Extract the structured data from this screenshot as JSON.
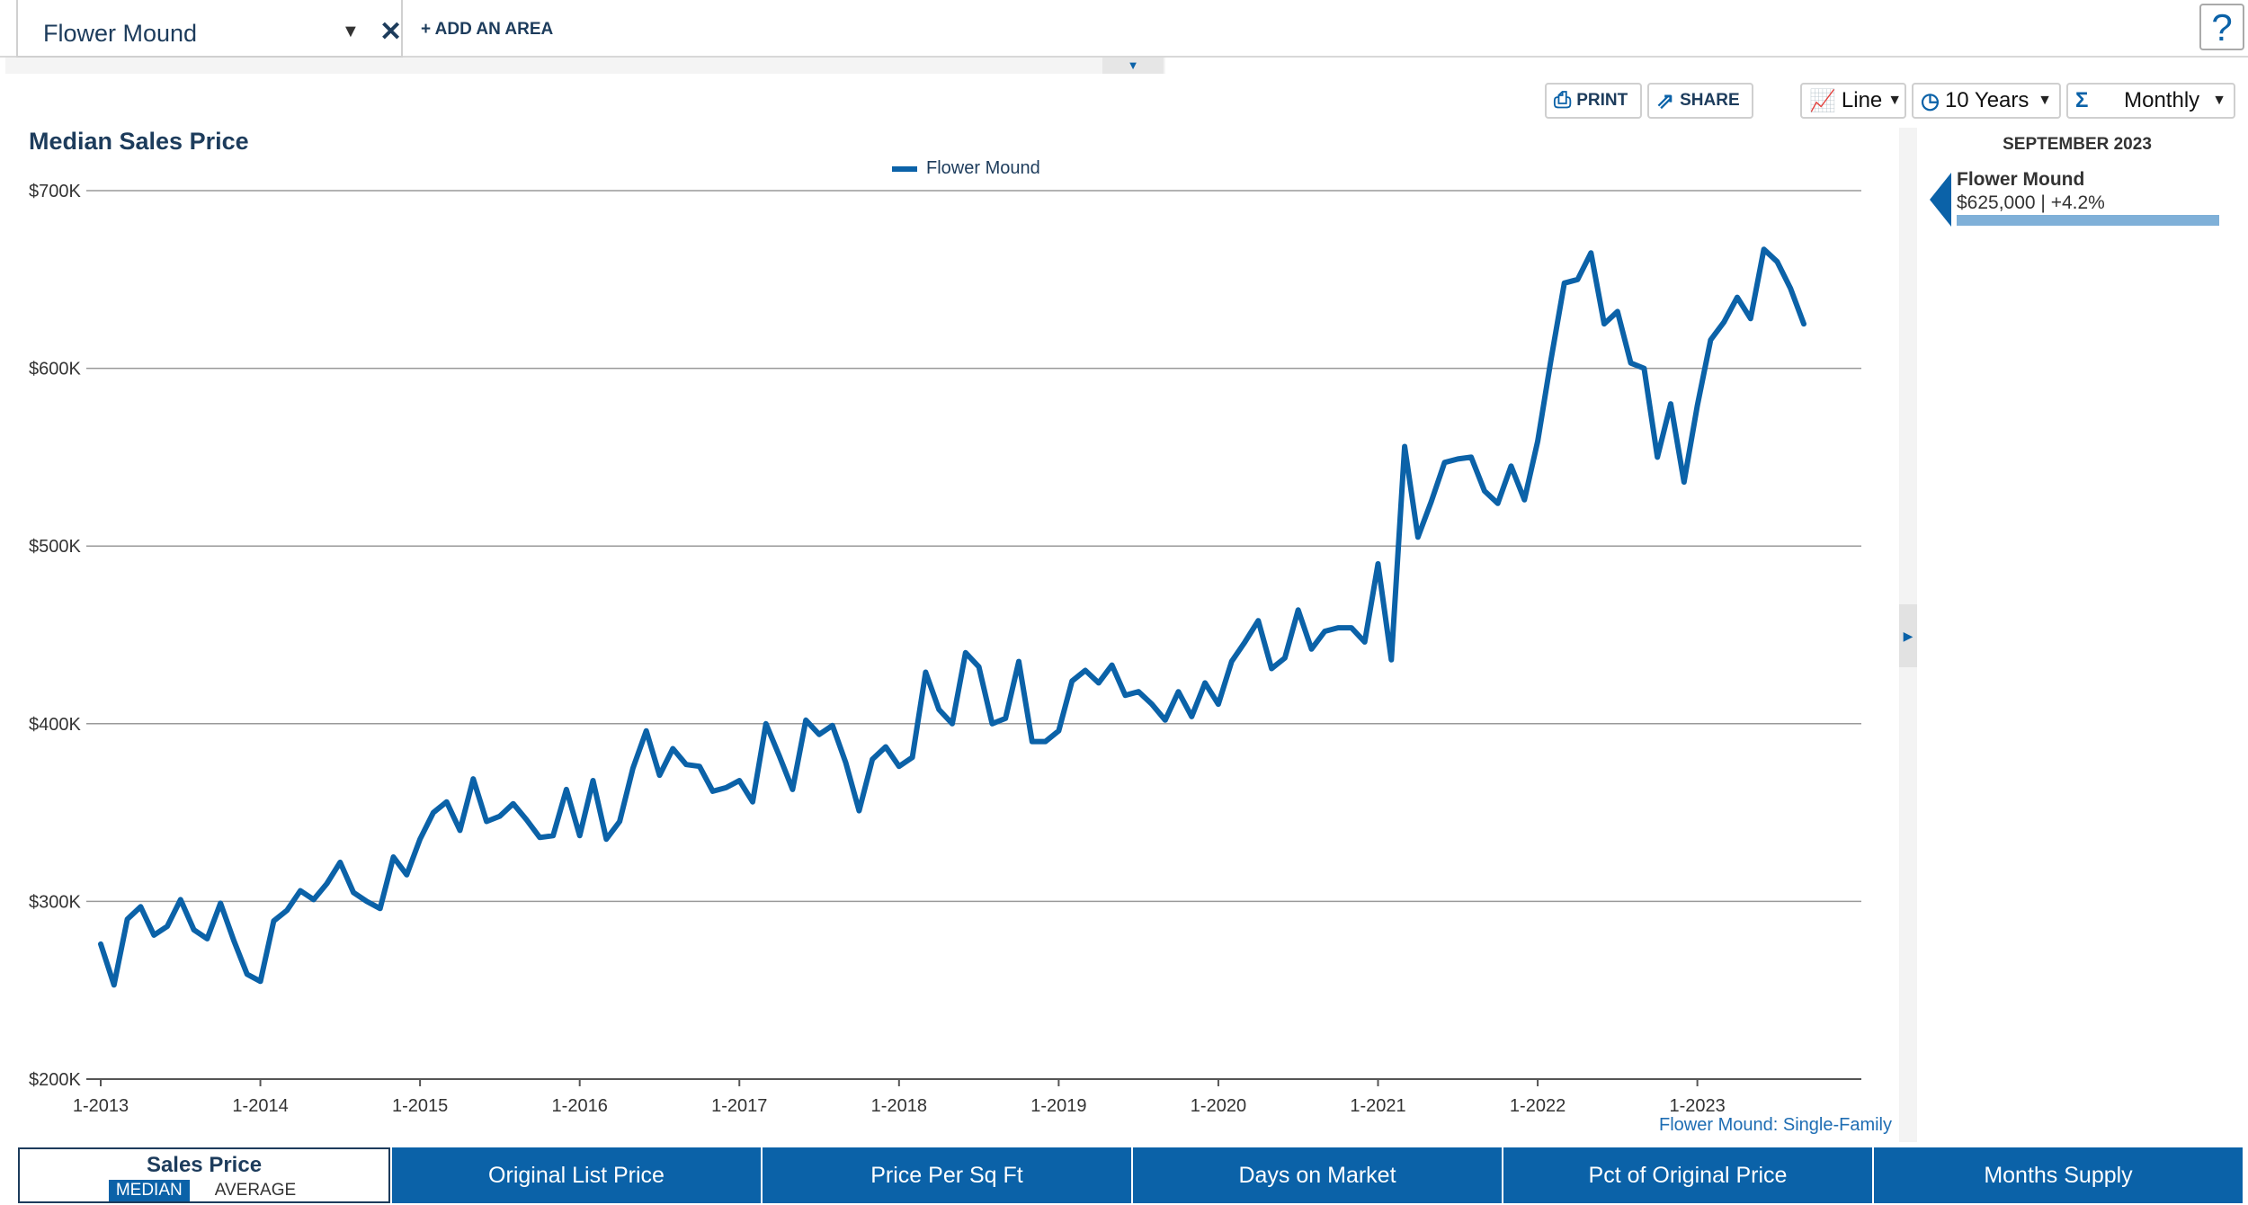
{
  "header": {
    "area_name": "Flower Mound",
    "add_area_label": "+ ADD AN AREA",
    "help_label": "?"
  },
  "toolbar": {
    "print_label": "PRINT",
    "share_label": "SHARE",
    "chart_type_label": "Line",
    "range_label": "10 Years",
    "interval_label": "Monthly"
  },
  "side_panel": {
    "date": "SEPTEMBER 2023",
    "area": "Flower Mound",
    "value": "$625,000 | +4.2%"
  },
  "footnote": "Flower Mound: Single-Family",
  "tabs": [
    {
      "label": "Sales Price",
      "sub_active": "MEDIAN",
      "sub_inactive": "AVERAGE"
    },
    {
      "label": "Original List Price"
    },
    {
      "label": "Price Per Sq Ft"
    },
    {
      "label": "Days on Market"
    },
    {
      "label": "Pct of Original Price"
    },
    {
      "label": "Months Supply"
    }
  ],
  "colors": {
    "accent": "#0b62a8",
    "title": "#1d3c5c"
  },
  "chart_data": {
    "type": "line",
    "title": "Median Sales Price",
    "xlabel": "",
    "ylabel": "",
    "ylim": [
      200000,
      700000
    ],
    "y_ticks": [
      200000,
      300000,
      400000,
      500000,
      600000,
      700000
    ],
    "y_tick_labels": [
      "$200K",
      "$300K",
      "$400K",
      "$500K",
      "$600K",
      "$700K"
    ],
    "x_tick_labels": [
      "1-2013",
      "1-2014",
      "1-2015",
      "1-2016",
      "1-2017",
      "1-2018",
      "1-2019",
      "1-2020",
      "1-2021",
      "1-2022",
      "1-2023"
    ],
    "start": "1-2013",
    "grid": true,
    "legend_position": "top-center",
    "series": [
      {
        "name": "Flower Mound",
        "color": "#0b62a8",
        "values": [
          276000,
          253000,
          290000,
          297000,
          281000,
          286000,
          301000,
          284000,
          279000,
          299000,
          278000,
          259000,
          255000,
          289000,
          295000,
          306000,
          301000,
          310000,
          322000,
          305000,
          300000,
          296000,
          325000,
          315000,
          335000,
          350000,
          356000,
          340000,
          369000,
          345000,
          348000,
          355000,
          346000,
          336000,
          337000,
          363000,
          337000,
          368000,
          335000,
          345000,
          375000,
          396000,
          371000,
          386000,
          377000,
          376000,
          362000,
          364000,
          368000,
          356000,
          400000,
          382000,
          363000,
          402000,
          394000,
          399000,
          378000,
          351000,
          380000,
          387000,
          376000,
          381000,
          429000,
          408000,
          400000,
          440000,
          432000,
          400000,
          403000,
          435000,
          390000,
          390000,
          396000,
          424000,
          430000,
          423000,
          433000,
          416000,
          418000,
          411000,
          402000,
          418000,
          404000,
          423000,
          411000,
          435000,
          446000,
          458000,
          431000,
          437000,
          464000,
          442000,
          452000,
          454000,
          454000,
          446000,
          490000,
          436000,
          556000,
          505000,
          525000,
          547000,
          549000,
          550000,
          531000,
          524000,
          545000,
          526000,
          559000,
          605000,
          648000,
          650000,
          665000,
          625000,
          632000,
          603000,
          600000,
          550000,
          580000,
          536000,
          579000,
          616000,
          626000,
          640000,
          628000,
          667000,
          660000,
          645000,
          625000
        ]
      }
    ]
  }
}
